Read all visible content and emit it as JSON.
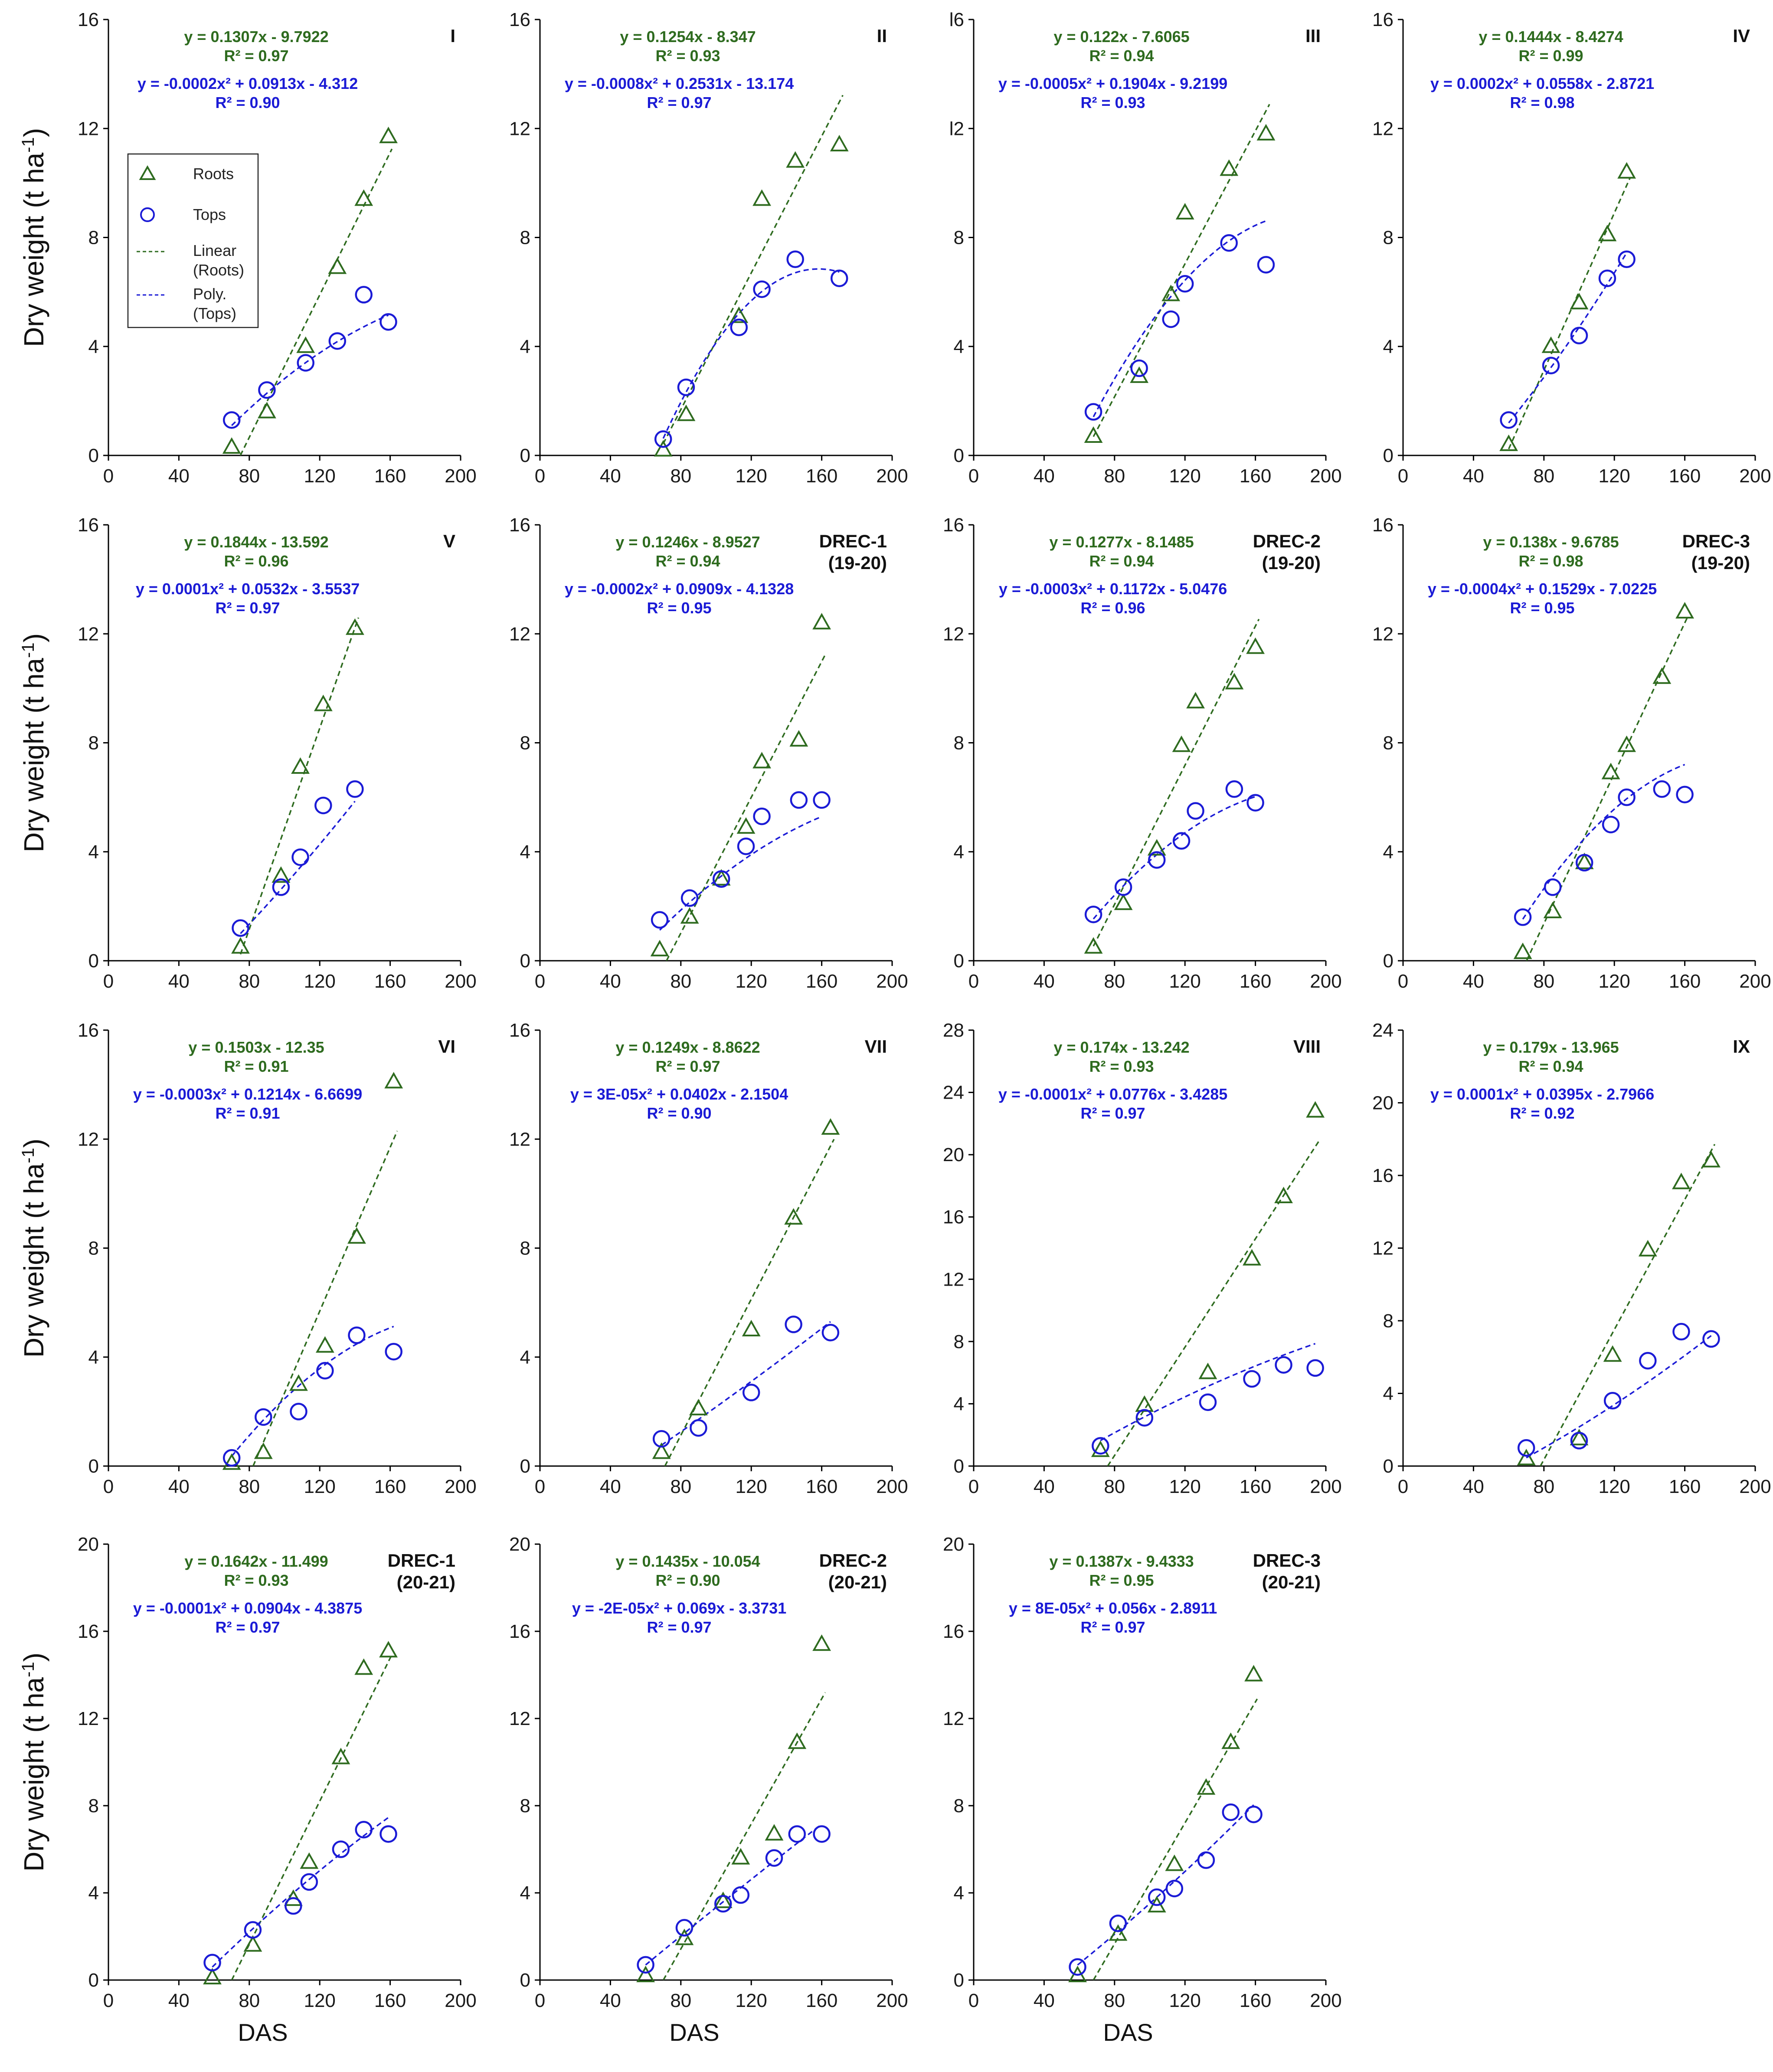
{
  "colors": {
    "roots": "#2e6b1f",
    "tops": "#1b1bd6",
    "axis": "#000000"
  },
  "legend": {
    "roots_label": "Roots",
    "tops_label": "Tops",
    "linear_label_1": "Linear",
    "linear_label_2": "(Roots)",
    "poly_label_1": "Poly.",
    "poly_label_2": "(Tops)"
  },
  "chart_data": [
    {
      "type": "scatter",
      "title": "I",
      "title2": "",
      "ylabel": "Dry weight (t ha",
      "ylabel_sup": "-1",
      "ylabel_end": ")",
      "xlabel": "",
      "xlim": [
        0,
        200
      ],
      "xticks": [
        0,
        40,
        80,
        120,
        160,
        200
      ],
      "ylim": [
        0,
        16
      ],
      "yticks": [
        0,
        4,
        8,
        12,
        16
      ],
      "roots": {
        "x": [
          70,
          90,
          112,
          130,
          145,
          159
        ],
        "y": [
          0.3,
          1.6,
          4.0,
          6.9,
          9.4,
          11.7
        ]
      },
      "tops": {
        "x": [
          70,
          90,
          112,
          130,
          145,
          159
        ],
        "y": [
          1.3,
          2.4,
          3.4,
          4.2,
          5.9,
          4.9
        ]
      },
      "lin_eq": "y = 0.1307x - 9.7922",
      "lin_r2": "R² = 0.97",
      "poly_eq": "y = -0.0002x² + 0.0913x - 4.312",
      "poly_r2": "R² = 0.90",
      "lin": [
        0.1307,
        -9.7922
      ],
      "poly": [
        -0.0002,
        0.0913,
        -4.312
      ],
      "legend": true
    },
    {
      "type": "scatter",
      "title": "II",
      "title2": "",
      "ylabel": "",
      "xlabel": "",
      "xlim": [
        0,
        200
      ],
      "xticks": [
        0,
        40,
        80,
        120,
        160,
        200
      ],
      "ylim": [
        0,
        16
      ],
      "yticks": [
        0,
        4,
        8,
        12,
        16
      ],
      "roots": {
        "x": [
          70,
          83,
          113,
          126,
          145,
          170
        ],
        "y": [
          0.2,
          1.5,
          5.1,
          9.4,
          10.8,
          11.4
        ]
      },
      "tops": {
        "x": [
          70,
          83,
          113,
          126,
          145,
          170
        ],
        "y": [
          0.6,
          2.5,
          4.7,
          6.1,
          7.2,
          6.5
        ]
      },
      "lin_eq": "y = 0.1254x - 8.347",
      "lin_r2": "R² = 0.93",
      "poly_eq": "y = -0.0008x² + 0.2531x - 13.174",
      "poly_r2": "R² = 0.97",
      "lin": [
        0.1254,
        -8.347
      ],
      "poly": [
        -0.0008,
        0.2531,
        -13.174
      ],
      "legend": false
    },
    {
      "type": "scatter",
      "title": "III",
      "title2": "",
      "ylabel": "",
      "xlabel": "",
      "xlim": [
        0,
        200
      ],
      "xticks": [
        0,
        40,
        80,
        120,
        160,
        200
      ],
      "ylim": [
        0,
        16
      ],
      "yticks": [
        0,
        4,
        8,
        12,
        16
      ],
      "yticklabels": [
        "0",
        "4",
        "8",
        "l2",
        "l6"
      ],
      "roots": {
        "x": [
          68,
          94,
          112,
          120,
          145,
          166
        ],
        "y": [
          0.7,
          2.9,
          5.9,
          8.9,
          10.5,
          11.8
        ]
      },
      "tops": {
        "x": [
          68,
          94,
          112,
          120,
          145,
          166
        ],
        "y": [
          1.6,
          3.2,
          5.0,
          6.3,
          7.8,
          7.0
        ]
      },
      "lin_eq": "y = 0.122x - 7.6065",
      "lin_r2": "R² = 0.94",
      "poly_eq": "y = -0.0005x² + 0.1904x - 9.2199",
      "poly_r2": "R² = 0.93",
      "lin": [
        0.122,
        -7.6065
      ],
      "poly": [
        -0.0005,
        0.1904,
        -9.2199
      ],
      "legend": false
    },
    {
      "type": "scatter",
      "title": "IV",
      "title2": "",
      "ylabel": "",
      "xlabel": "",
      "xlim": [
        0,
        200
      ],
      "xticks": [
        0,
        40,
        80,
        120,
        160,
        200
      ],
      "ylim": [
        0,
        16
      ],
      "yticks": [
        0,
        4,
        8,
        12,
        16
      ],
      "roots": {
        "x": [
          60,
          84,
          100,
          116,
          127
        ],
        "y": [
          0.4,
          4.0,
          5.6,
          8.1,
          10.4
        ]
      },
      "tops": {
        "x": [
          60,
          84,
          100,
          116,
          127
        ],
        "y": [
          1.3,
          3.3,
          4.4,
          6.5,
          7.2
        ]
      },
      "lin_eq": "y = 0.1444x - 8.4274",
      "lin_r2": "R² = 0.99",
      "poly_eq": "y = 0.0002x² + 0.0558x - 2.8721",
      "poly_r2": "R² = 0.98",
      "lin": [
        0.1444,
        -8.4274
      ],
      "poly": [
        0.0002,
        0.0558,
        -2.8721
      ],
      "legend": false
    },
    {
      "type": "scatter",
      "title": "V",
      "title2": "",
      "ylabel": "Dry weight (t ha",
      "ylabel_sup": "-1",
      "ylabel_end": ")",
      "xlabel": "",
      "xlim": [
        0,
        200
      ],
      "xticks": [
        0,
        40,
        80,
        120,
        160,
        200
      ],
      "ylim": [
        0,
        16
      ],
      "yticks": [
        0,
        4,
        8,
        12,
        16
      ],
      "roots": {
        "x": [
          75,
          98,
          109,
          122,
          140
        ],
        "y": [
          0.5,
          3.1,
          7.1,
          9.4,
          12.2
        ]
      },
      "tops": {
        "x": [
          75,
          98,
          109,
          122,
          140
        ],
        "y": [
          1.2,
          2.7,
          3.8,
          5.7,
          6.3
        ]
      },
      "lin_eq": "y = 0.1844x - 13.592",
      "lin_r2": "R² = 0.96",
      "poly_eq": "y = 0.0001x² + 0.0532x - 3.5537",
      "poly_r2": "R² = 0.97",
      "lin": [
        0.1844,
        -13.592
      ],
      "poly": [
        0.0001,
        0.0532,
        -3.5537
      ],
      "legend": false
    },
    {
      "type": "scatter",
      "title": "DREC-1",
      "title2": "(19-20)",
      "ylabel": "",
      "xlabel": "",
      "xlim": [
        0,
        200
      ],
      "xticks": [
        0,
        40,
        80,
        120,
        160,
        200
      ],
      "ylim": [
        0,
        16
      ],
      "yticks": [
        0,
        4,
        8,
        12,
        16
      ],
      "roots": {
        "x": [
          68,
          85,
          103,
          117,
          126,
          147,
          160
        ],
        "y": [
          0.4,
          1.6,
          3.0,
          4.9,
          7.3,
          8.1,
          12.4
        ]
      },
      "tops": {
        "x": [
          68,
          85,
          103,
          117,
          126,
          147,
          160
        ],
        "y": [
          1.5,
          2.3,
          3.0,
          4.2,
          5.3,
          5.9,
          5.9
        ]
      },
      "lin_eq": "y = 0.1246x - 8.9527",
      "lin_r2": "R² = 0.94",
      "poly_eq": "y = -0.0002x² + 0.0909x - 4.1328",
      "poly_r2": "R² = 0.95",
      "lin": [
        0.1246,
        -8.9527
      ],
      "poly": [
        -0.0002,
        0.0909,
        -4.1328
      ],
      "legend": false
    },
    {
      "type": "scatter",
      "title": "DREC-2",
      "title2": "(19-20)",
      "ylabel": "",
      "xlabel": "",
      "xlim": [
        0,
        200
      ],
      "xticks": [
        0,
        40,
        80,
        120,
        160,
        200
      ],
      "ylim": [
        0,
        16
      ],
      "yticks": [
        0,
        4,
        8,
        12,
        16
      ],
      "roots": {
        "x": [
          68,
          85,
          104,
          118,
          126,
          148,
          160
        ],
        "y": [
          0.5,
          2.1,
          4.1,
          7.9,
          9.5,
          10.2,
          11.5
        ]
      },
      "tops": {
        "x": [
          68,
          85,
          104,
          118,
          126,
          148,
          160
        ],
        "y": [
          1.7,
          2.7,
          3.7,
          4.4,
          5.5,
          6.3,
          5.8
        ]
      },
      "lin_eq": "y = 0.1277x - 8.1485",
      "lin_r2": "R² = 0.94",
      "poly_eq": "y = -0.0003x² + 0.1172x - 5.0476",
      "poly_r2": "R² = 0.96",
      "lin": [
        0.1277,
        -8.1485
      ],
      "poly": [
        -0.0003,
        0.1172,
        -5.0476
      ],
      "legend": false
    },
    {
      "type": "scatter",
      "title": "DREC-3",
      "title2": "(19-20)",
      "ylabel": "",
      "xlabel": "",
      "xlim": [
        0,
        200
      ],
      "xticks": [
        0,
        40,
        80,
        120,
        160,
        200
      ],
      "ylim": [
        0,
        16
      ],
      "yticks": [
        0,
        4,
        8,
        12,
        16
      ],
      "roots": {
        "x": [
          68,
          85,
          103,
          118,
          127,
          147,
          160
        ],
        "y": [
          0.3,
          1.8,
          3.6,
          6.9,
          7.9,
          10.4,
          12.8
        ]
      },
      "tops": {
        "x": [
          68,
          85,
          103,
          118,
          127,
          147,
          160
        ],
        "y": [
          1.6,
          2.7,
          3.6,
          5.0,
          6.0,
          6.3,
          6.1
        ]
      },
      "lin_eq": "y = 0.138x - 9.6785",
      "lin_r2": "R² = 0.98",
      "poly_eq": "y = -0.0004x² + 0.1529x - 7.0225",
      "poly_r2": "R² = 0.95",
      "lin": [
        0.138,
        -9.6785
      ],
      "poly": [
        -0.0004,
        0.1529,
        -7.0225
      ],
      "legend": false
    },
    {
      "type": "scatter",
      "title": "VI",
      "title2": "",
      "ylabel": "Dry weight (t ha",
      "ylabel_sup": "-1",
      "ylabel_end": ")",
      "xlabel": "",
      "xlim": [
        0,
        200
      ],
      "xticks": [
        0,
        40,
        80,
        120,
        160,
        200
      ],
      "ylim": [
        0,
        16
      ],
      "yticks": [
        0,
        4,
        8,
        12,
        16
      ],
      "roots": {
        "x": [
          70,
          88,
          108,
          123,
          141,
          162
        ],
        "y": [
          0.1,
          0.5,
          3.0,
          4.4,
          8.4,
          14.1
        ]
      },
      "tops": {
        "x": [
          70,
          88,
          108,
          123,
          141,
          162
        ],
        "y": [
          0.3,
          1.8,
          2.0,
          3.5,
          4.8,
          4.2
        ]
      },
      "lin_eq": "y = 0.1503x - 12.35",
      "lin_r2": "R² = 0.91",
      "poly_eq": "y = -0.0003x² + 0.1214x - 6.6699",
      "poly_r2": "R² = 0.91",
      "lin": [
        0.1503,
        -12.35
      ],
      "poly": [
        -0.0003,
        0.1214,
        -6.6699
      ],
      "legend": false
    },
    {
      "type": "scatter",
      "title": "VII",
      "title2": "",
      "ylabel": "",
      "xlabel": "",
      "xlim": [
        0,
        200
      ],
      "xticks": [
        0,
        40,
        80,
        120,
        160,
        200
      ],
      "ylim": [
        0,
        16
      ],
      "yticks": [
        0,
        4,
        8,
        12,
        16
      ],
      "roots": {
        "x": [
          69,
          90,
          120,
          144,
          165
        ],
        "y": [
          0.5,
          2.1,
          5.0,
          9.1,
          12.4
        ]
      },
      "tops": {
        "x": [
          69,
          90,
          120,
          144,
          165
        ],
        "y": [
          1.0,
          1.4,
          2.7,
          5.2,
          4.9
        ]
      },
      "lin_eq": "y = 0.1249x - 8.8622",
      "lin_r2": "R² = 0.97",
      "poly_eq": "y = 3E-05x² + 0.0402x - 2.1504",
      "poly_r2": "R² = 0.90",
      "lin": [
        0.1249,
        -8.8622
      ],
      "poly": [
        3e-05,
        0.0402,
        -2.1504
      ],
      "legend": false
    },
    {
      "type": "scatter",
      "title": "VIII",
      "title2": "",
      "ylabel": "",
      "xlabel": "",
      "xlim": [
        0,
        200
      ],
      "xticks": [
        0,
        40,
        80,
        120,
        160,
        200
      ],
      "ylim": [
        0,
        28
      ],
      "yticks": [
        0,
        4,
        8,
        12,
        16,
        20,
        24,
        28
      ],
      "roots": {
        "x": [
          72,
          97,
          133,
          158,
          176,
          194
        ],
        "y": [
          1.0,
          3.9,
          6.0,
          13.3,
          17.3,
          22.8
        ]
      },
      "tops": {
        "x": [
          72,
          97,
          133,
          158,
          176,
          194
        ],
        "y": [
          1.3,
          3.1,
          4.1,
          5.6,
          6.5,
          6.3
        ]
      },
      "lin_eq": "y = 0.174x - 13.242",
      "lin_r2": "R² = 0.93",
      "poly_eq": "y = -0.0001x² + 0.0776x - 3.4285",
      "poly_r2": "R² = 0.97",
      "lin": [
        0.174,
        -13.242
      ],
      "poly": [
        -0.0001,
        0.0776,
        -3.4285
      ],
      "legend": false
    },
    {
      "type": "scatter",
      "title": "IX",
      "title2": "",
      "ylabel": "",
      "xlabel": "",
      "xlim": [
        0,
        200
      ],
      "xticks": [
        0,
        40,
        80,
        120,
        160,
        200
      ],
      "ylim": [
        0,
        24
      ],
      "yticks": [
        0,
        4,
        8,
        12,
        16,
        20,
        24
      ],
      "roots": {
        "x": [
          70,
          100,
          119,
          139,
          158,
          175
        ],
        "y": [
          0.4,
          1.5,
          6.1,
          11.9,
          15.6,
          16.8
        ]
      },
      "tops": {
        "x": [
          70,
          100,
          119,
          139,
          158,
          175
        ],
        "y": [
          1.0,
          1.4,
          3.6,
          5.8,
          7.4,
          7.0
        ]
      },
      "lin_eq": "y = 0.179x - 13.965",
      "lin_r2": "R² = 0.94",
      "poly_eq": "y = 0.0001x² + 0.0395x - 2.7966",
      "poly_r2": "R² = 0.92",
      "lin": [
        0.179,
        -13.965
      ],
      "poly": [
        0.0001,
        0.0395,
        -2.7966
      ],
      "legend": false
    },
    {
      "type": "scatter",
      "title": "DREC-1",
      "title2": "(20-21)",
      "ylabel": "Dry weight (t ha",
      "ylabel_sup": "-1",
      "ylabel_end": ")",
      "xlabel": "DAS",
      "xlim": [
        0,
        200
      ],
      "xticks": [
        0,
        40,
        80,
        120,
        160,
        200
      ],
      "ylim": [
        0,
        20
      ],
      "yticks": [
        0,
        4,
        8,
        12,
        16,
        20
      ],
      "roots": {
        "x": [
          59,
          82,
          105,
          114,
          132,
          145,
          159
        ],
        "y": [
          0.1,
          1.6,
          3.7,
          5.4,
          10.2,
          14.3,
          15.1
        ]
      },
      "tops": {
        "x": [
          59,
          82,
          105,
          114,
          132,
          145,
          159
        ],
        "y": [
          0.8,
          2.3,
          3.4,
          4.5,
          6.0,
          6.9,
          6.7
        ]
      },
      "lin_eq": "y = 0.1642x - 11.499",
      "lin_r2": "R² = 0.93",
      "poly_eq": "y = -0.0001x² + 0.0904x - 4.3875",
      "poly_r2": "R² = 0.97",
      "lin": [
        0.1642,
        -11.499
      ],
      "poly": [
        -0.0001,
        0.0904,
        -4.3875
      ],
      "legend": false
    },
    {
      "type": "scatter",
      "title": "DREC-2",
      "title2": "(20-21)",
      "ylabel": "",
      "xlabel": "DAS",
      "xlim": [
        0,
        200
      ],
      "xticks": [
        0,
        40,
        80,
        120,
        160,
        200
      ],
      "ylim": [
        0,
        20
      ],
      "yticks": [
        0,
        4,
        8,
        12,
        16,
        20
      ],
      "roots": {
        "x": [
          60,
          82,
          104,
          114,
          133,
          146,
          160
        ],
        "y": [
          0.2,
          1.9,
          3.6,
          5.6,
          6.7,
          10.9,
          15.4
        ]
      },
      "tops": {
        "x": [
          60,
          82,
          104,
          114,
          133,
          146,
          160
        ],
        "y": [
          0.7,
          2.4,
          3.5,
          3.9,
          5.6,
          6.7,
          6.7
        ]
      },
      "lin_eq": "y = 0.1435x - 10.054",
      "lin_r2": "R² = 0.90",
      "poly_eq": "y = -2E-05x² + 0.069x - 3.3731",
      "poly_r2": "R² = 0.97",
      "lin": [
        0.1435,
        -10.054
      ],
      "poly": [
        -2e-05,
        0.069,
        -3.3731
      ],
      "legend": false
    },
    {
      "type": "scatter",
      "title": "DREC-3",
      "title2": "(20-21)",
      "ylabel": "",
      "xlabel": "DAS",
      "xlim": [
        0,
        200
      ],
      "xticks": [
        0,
        40,
        80,
        120,
        160,
        200
      ],
      "ylim": [
        0,
        20
      ],
      "yticks": [
        0,
        4,
        8,
        12,
        16,
        20
      ],
      "roots": {
        "x": [
          59,
          82,
          104,
          114,
          132,
          146,
          159
        ],
        "y": [
          0.2,
          2.1,
          3.4,
          5.3,
          8.8,
          10.9,
          14.0
        ]
      },
      "tops": {
        "x": [
          59,
          82,
          104,
          114,
          132,
          146,
          159
        ],
        "y": [
          0.6,
          2.6,
          3.8,
          4.2,
          5.5,
          7.7,
          7.6
        ]
      },
      "lin_eq": "y = 0.1387x - 9.4333",
      "lin_r2": "R² = 0.95",
      "poly_eq": "y = 8E-05x² + 0.056x - 2.8911",
      "poly_r2": "R² = 0.97",
      "lin": [
        0.1387,
        -9.4333
      ],
      "poly": [
        8e-05,
        0.056,
        -2.8911
      ],
      "legend": false
    }
  ]
}
